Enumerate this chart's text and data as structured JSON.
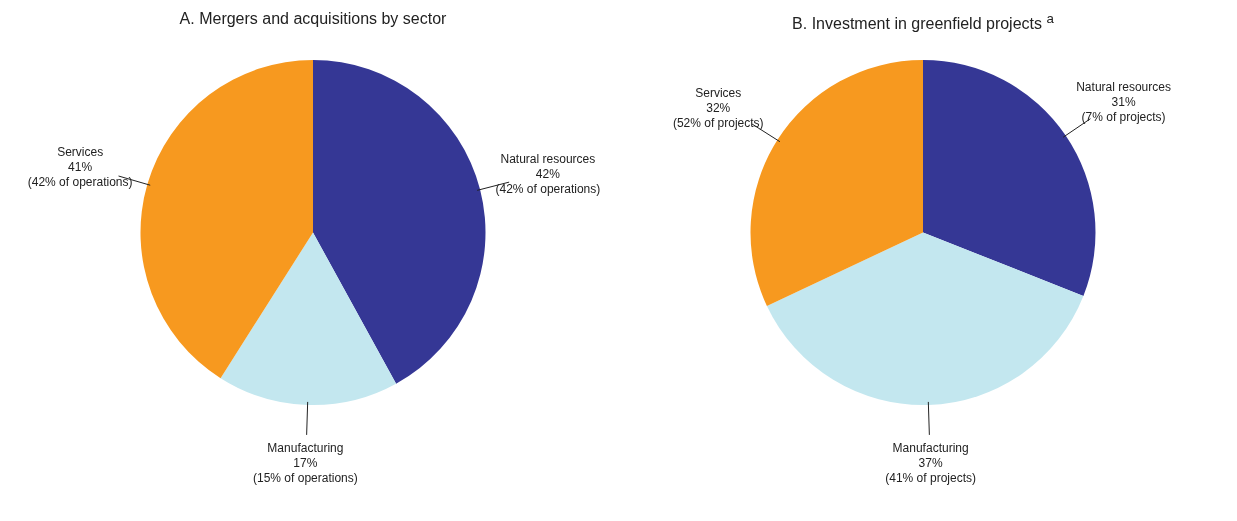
{
  "chart_data": [
    {
      "type": "pie",
      "title": "A. Mergers and acquisitions by sector",
      "categories": [
        "Natural resources",
        "Manufacturing",
        "Services"
      ],
      "values": [
        42,
        17,
        41
      ],
      "colors": [
        "#353795",
        "#c3e7ef",
        "#f7991f"
      ],
      "value_labels": [
        "42%\n(42% of operations)",
        "17%\n(15% of operations)",
        "41%\n(42% of operations)"
      ],
      "legend": false
    },
    {
      "type": "pie",
      "title": "B. Investment in greenfield projects $^{a}$",
      "categories": [
        "Natural resources",
        "Manufacturing",
        "Services"
      ],
      "values": [
        31,
        37,
        32
      ],
      "colors": [
        "#353795",
        "#c3e7ef",
        "#f7991f"
      ],
      "value_labels": [
        "31%\n(7% of projects)",
        "37%\n(41% of projects)",
        "32%\n(52% of projects)"
      ],
      "legend": false
    }
  ]
}
